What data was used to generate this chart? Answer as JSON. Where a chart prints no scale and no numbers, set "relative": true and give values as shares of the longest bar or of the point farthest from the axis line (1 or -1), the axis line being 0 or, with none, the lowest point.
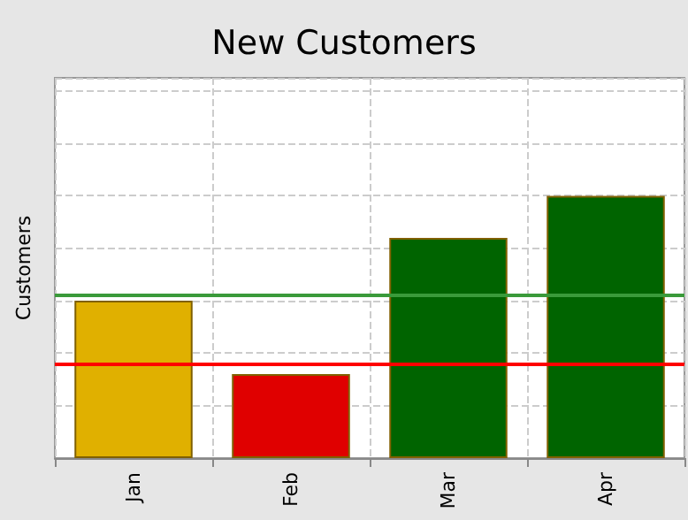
{
  "chart_data": {
    "type": "bar",
    "title": "New Customers",
    "ylabel": "Customers",
    "categories": [
      "Jan",
      "Feb",
      "Mar",
      "Apr"
    ],
    "values": [
      0.6,
      0.32,
      0.84,
      1.0
    ],
    "colors": [
      "#e0b000",
      "#e00000",
      "#006400",
      "#006400"
    ],
    "relative": true,
    "grid": true,
    "ref_lines": [
      {
        "axis": "y",
        "value": 0.36,
        "color": "#ff0000"
      },
      {
        "axis": "y",
        "value": 0.62,
        "color": "#3a9a3a"
      }
    ]
  }
}
